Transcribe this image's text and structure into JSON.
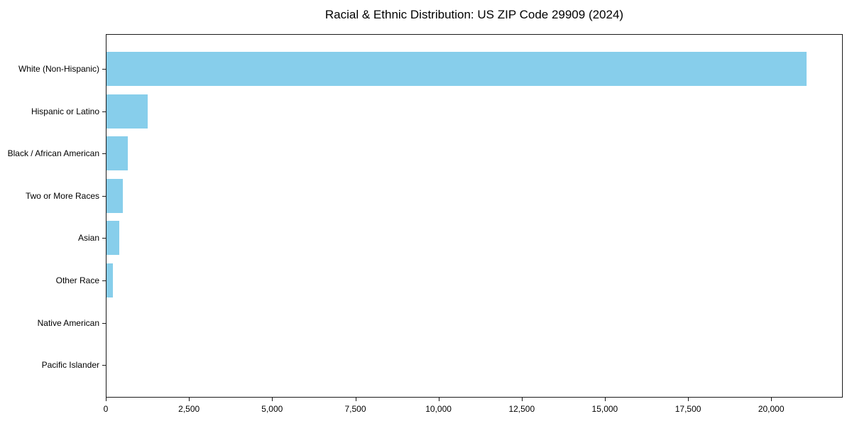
{
  "figure": {
    "background": "#ffffff",
    "text_color": "#000000",
    "spine_color": "#1a1a1a"
  },
  "chart_data": {
    "type": "bar",
    "orientation": "horizontal",
    "title": "Racial & Ethnic Distribution: US ZIP Code 29909 (2024)",
    "categories": [
      "White (Non-Hispanic)",
      "Hispanic or Latino",
      "Black / African American",
      "Two or More Races",
      "Asian",
      "Other Race",
      "Native American",
      "Pacific Islander"
    ],
    "values": [
      21045,
      1230,
      640,
      500,
      390,
      190,
      0,
      0
    ],
    "xlabel": "",
    "ylabel": "",
    "xlim": [
      0,
      22150
    ],
    "x_ticks": [
      0,
      2500,
      5000,
      7500,
      10000,
      12500,
      15000,
      17500,
      20000
    ],
    "x_tick_labels": [
      "0",
      "2,500",
      "5,000",
      "7,500",
      "10,000",
      "12,500",
      "15,000",
      "17,500",
      "20,000"
    ],
    "bar_color": "#87ceeb",
    "grid": false,
    "legend": "none"
  }
}
